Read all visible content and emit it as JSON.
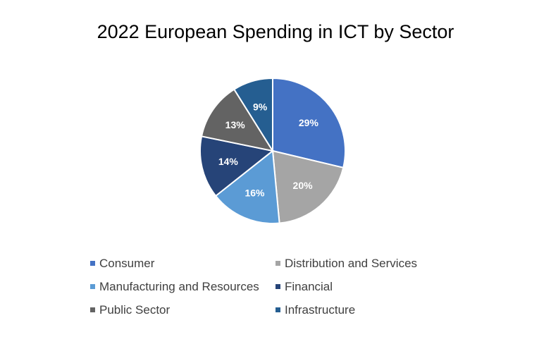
{
  "chart_data": {
    "type": "pie",
    "title": "2022 European Spending in ICT by Sector",
    "unit": "%",
    "slices": [
      {
        "name": "Consumer",
        "value": 29,
        "label": "29%",
        "color": "#4472C4"
      },
      {
        "name": "Distribution and Services",
        "value": 20,
        "label": "20%",
        "color": "#A5A5A5"
      },
      {
        "name": "Manufacturing and Resources",
        "value": 16,
        "label": "16%",
        "color": "#5B9BD5"
      },
      {
        "name": "Financial",
        "value": 14,
        "label": "14%",
        "color": "#264478"
      },
      {
        "name": "Public Sector",
        "value": 13,
        "label": "13%",
        "color": "#636363"
      },
      {
        "name": "Infrastructure",
        "value": 9,
        "label": "9%",
        "color": "#255E91"
      }
    ],
    "legend_position": "bottom"
  }
}
